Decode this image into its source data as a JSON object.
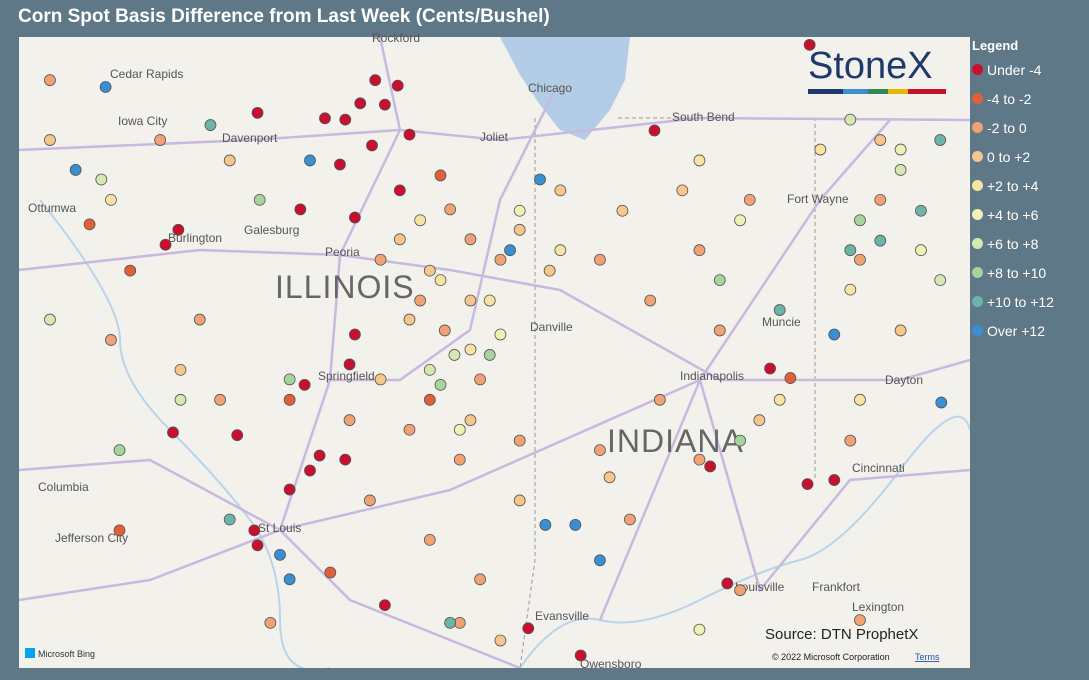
{
  "title": "Corn Spot Basis Difference from Last Week (Cents/Bushel)",
  "legend": {
    "title": "Legend",
    "items": [
      {
        "label": "Under -4",
        "color": "#c8102e"
      },
      {
        "label": "-4 to -2",
        "color": "#e0603a"
      },
      {
        "label": "-2 to 0",
        "color": "#f0a274"
      },
      {
        "label": "0 to +2",
        "color": "#f6c68c"
      },
      {
        "label": "+2 to +4",
        "color": "#f7e4a4"
      },
      {
        "label": "+4 to +6",
        "color": "#eff2b4"
      },
      {
        "label": "+6 to +8",
        "color": "#d5e8b2"
      },
      {
        "label": "+8 to +10",
        "color": "#a6d49e"
      },
      {
        "label": "+10 to +12",
        "color": "#6db4a8"
      },
      {
        "label": "Over +12",
        "color": "#3a8ed2"
      }
    ]
  },
  "logo": "StoneX",
  "source": "Source: DTN ProphetX",
  "copyright": "© 2022 Microsoft Corporation",
  "terms": "Terms",
  "provider": "Microsoft Bing",
  "map": {
    "regions": [
      "ILLINOIS",
      "INDIANA"
    ],
    "cities": [
      "Cedar Rapids",
      "Iowa City",
      "Davenport",
      "Ottumwa",
      "Burlington",
      "Galesburg",
      "Peoria",
      "Springfield",
      "Rockford",
      "Chicago",
      "Joliet",
      "South Bend",
      "Fort Wayne",
      "Danville",
      "Muncie",
      "Indianapolis",
      "Dayton",
      "Cincinnati",
      "Columbia",
      "Jefferson City",
      "St Louis",
      "Louisville",
      "Frankfort",
      "Lexington",
      "Evansville",
      "Owensboro"
    ],
    "points": [
      [
        -89.31,
        41.93,
        0
      ],
      [
        -89.1,
        41.89,
        0
      ],
      [
        -89.22,
        41.75,
        0
      ],
      [
        -89.45,
        41.76,
        0
      ],
      [
        -89.59,
        41.64,
        0
      ],
      [
        -89.78,
        41.65,
        0
      ],
      [
        -89.34,
        41.45,
        0
      ],
      [
        -88.99,
        41.53,
        0
      ],
      [
        -89.64,
        41.31,
        0
      ],
      [
        -90.01,
        40.98,
        0
      ],
      [
        -89.5,
        40.92,
        0
      ],
      [
        -89.08,
        41.12,
        0
      ],
      [
        -91.15,
        40.83,
        0
      ],
      [
        -91.27,
        40.72,
        0
      ],
      [
        -90.41,
        41.69,
        0
      ],
      [
        -90.44,
        38.62,
        0
      ],
      [
        -90.41,
        38.51,
        0
      ],
      [
        -89.83,
        39.17,
        0
      ],
      [
        -89.92,
        39.06,
        0
      ],
      [
        -90.11,
        38.92,
        0
      ],
      [
        -89.59,
        39.14,
        0
      ],
      [
        -89.5,
        40.06,
        0
      ],
      [
        -89.55,
        39.84,
        0
      ],
      [
        -89.97,
        39.69,
        0
      ],
      [
        -90.6,
        39.32,
        0
      ],
      [
        -85.27,
        38.96,
        0
      ],
      [
        -85.02,
        38.99,
        0
      ],
      [
        -86.02,
        38.23,
        0
      ],
      [
        -86.7,
        41.56,
        0
      ],
      [
        -85.25,
        42.19,
        0
      ],
      [
        -85.62,
        39.81,
        0
      ],
      [
        -87.88,
        37.9,
        0
      ],
      [
        -87.39,
        37.7,
        0
      ],
      [
        -86.18,
        39.09,
        0
      ],
      [
        -91.2,
        39.34,
        0
      ],
      [
        -89.22,
        38.07,
        0
      ],
      [
        -88.7,
        41.23,
        1
      ],
      [
        -91.98,
        40.87,
        1
      ],
      [
        -91.6,
        40.53,
        1
      ],
      [
        -91.7,
        38.62,
        1
      ],
      [
        -89.73,
        38.31,
        1
      ],
      [
        -88.8,
        39.58,
        1
      ],
      [
        -90.11,
        39.58,
        1
      ],
      [
        -85.43,
        39.74,
        1
      ],
      [
        -88.61,
        40.98,
        2
      ],
      [
        -88.42,
        40.76,
        2
      ],
      [
        -88.14,
        40.61,
        2
      ],
      [
        -88.89,
        40.31,
        2
      ],
      [
        -89.26,
        40.61,
        2
      ],
      [
        -88.66,
        40.09,
        2
      ],
      [
        -88.33,
        39.73,
        2
      ],
      [
        -87.96,
        39.28,
        2
      ],
      [
        -88.52,
        39.14,
        2
      ],
      [
        -88.99,
        39.36,
        2
      ],
      [
        -89.55,
        39.43,
        2
      ],
      [
        -89.36,
        38.84,
        2
      ],
      [
        -88.8,
        38.55,
        2
      ],
      [
        -88.33,
        38.26,
        2
      ],
      [
        -87.21,
        40.61,
        2
      ],
      [
        -86.74,
        40.31,
        2
      ],
      [
        -86.28,
        40.68,
        2
      ],
      [
        -86.09,
        40.09,
        2
      ],
      [
        -86.65,
        39.58,
        2
      ],
      [
        -87.21,
        39.21,
        2
      ],
      [
        -86.93,
        38.7,
        2
      ],
      [
        -86.28,
        39.14,
        2
      ],
      [
        -85.81,
        41.05,
        2
      ],
      [
        -84.78,
        40.61,
        2
      ],
      [
        -84.59,
        41.05,
        2
      ],
      [
        -91.32,
        41.49,
        2
      ],
      [
        -92.35,
        41.93,
        2
      ],
      [
        -91.78,
        40.02,
        2
      ],
      [
        -90.95,
        40.17,
        2
      ],
      [
        -90.76,
        39.58,
        2
      ],
      [
        -90.29,
        37.94,
        2
      ],
      [
        -88.52,
        37.94,
        2
      ],
      [
        -85.9,
        38.18,
        2
      ],
      [
        -84.78,
        37.96,
        2
      ],
      [
        -84.87,
        39.28,
        2
      ],
      [
        -89.08,
        40.76,
        3
      ],
      [
        -88.8,
        40.53,
        3
      ],
      [
        -88.99,
        40.17,
        3
      ],
      [
        -88.42,
        40.31,
        3
      ],
      [
        -87.96,
        40.83,
        3
      ],
      [
        -87.68,
        40.53,
        3
      ],
      [
        -89.26,
        39.73,
        3
      ],
      [
        -88.42,
        39.43,
        3
      ],
      [
        -87.96,
        38.84,
        3
      ],
      [
        -87.58,
        41.12,
        3
      ],
      [
        -87.0,
        40.97,
        3
      ],
      [
        -86.44,
        41.12,
        3
      ],
      [
        -85.72,
        39.43,
        3
      ],
      [
        -84.59,
        41.49,
        3
      ],
      [
        -84.4,
        40.09,
        3
      ],
      [
        -92.35,
        41.49,
        3
      ],
      [
        -90.67,
        41.34,
        3
      ],
      [
        -91.13,
        39.8,
        3
      ],
      [
        -87.12,
        39.01,
        3
      ],
      [
        -88.14,
        37.81,
        3
      ],
      [
        -88.89,
        40.9,
        4
      ],
      [
        -88.7,
        40.46,
        4
      ],
      [
        -88.24,
        40.31,
        4
      ],
      [
        -87.58,
        40.68,
        4
      ],
      [
        -85.15,
        41.42,
        4
      ],
      [
        -84.87,
        40.39,
        4
      ],
      [
        -86.28,
        41.34,
        4
      ],
      [
        -88.42,
        39.95,
        4
      ],
      [
        -91.78,
        41.05,
        4
      ],
      [
        -84.78,
        39.58,
        4
      ],
      [
        -85.53,
        39.58,
        4
      ],
      [
        -88.52,
        39.36,
        5
      ],
      [
        -88.14,
        40.06,
        5
      ],
      [
        -85.9,
        40.9,
        5
      ],
      [
        -84.4,
        41.42,
        5
      ],
      [
        -84.21,
        40.68,
        5
      ],
      [
        -86.28,
        37.89,
        5
      ],
      [
        -87.96,
        40.97,
        5
      ],
      [
        -88.8,
        39.8,
        6
      ],
      [
        -84.4,
        41.27,
        6
      ],
      [
        -84.87,
        41.64,
        6
      ],
      [
        -91.87,
        41.2,
        6
      ],
      [
        -92.35,
        40.17,
        6
      ],
      [
        -91.13,
        39.58,
        6
      ],
      [
        -84.03,
        40.46,
        6
      ],
      [
        -88.57,
        39.91,
        6
      ],
      [
        -90.11,
        39.73,
        7
      ],
      [
        -88.7,
        39.69,
        7
      ],
      [
        -88.24,
        39.91,
        7
      ],
      [
        -86.09,
        40.46,
        7
      ],
      [
        -84.78,
        40.9,
        7
      ],
      [
        -91.7,
        39.21,
        7
      ],
      [
        -90.39,
        41.05,
        7
      ],
      [
        -85.9,
        39.28,
        7
      ],
      [
        -90.85,
        41.6,
        8
      ],
      [
        -90.67,
        38.7,
        8
      ],
      [
        -84.59,
        40.75,
        8
      ],
      [
        -84.21,
        40.97,
        8
      ],
      [
        -84.03,
        41.49,
        8
      ],
      [
        -85.53,
        40.24,
        8
      ],
      [
        -84.87,
        40.68,
        8
      ],
      [
        -88.61,
        37.94,
        8
      ],
      [
        -91.83,
        41.88,
        9
      ],
      [
        -92.11,
        41.27,
        9
      ],
      [
        -89.92,
        41.34,
        9
      ],
      [
        -87.77,
        41.2,
        9
      ],
      [
        -87.72,
        38.66,
        9
      ],
      [
        -87.44,
        38.66,
        9
      ],
      [
        -90.2,
        38.44,
        9
      ],
      [
        -90.11,
        38.26,
        9
      ],
      [
        -85.02,
        40.06,
        9
      ],
      [
        -84.02,
        39.56,
        9
      ],
      [
        -87.21,
        38.4,
        9
      ],
      [
        -88.05,
        40.68,
        9
      ]
    ]
  }
}
